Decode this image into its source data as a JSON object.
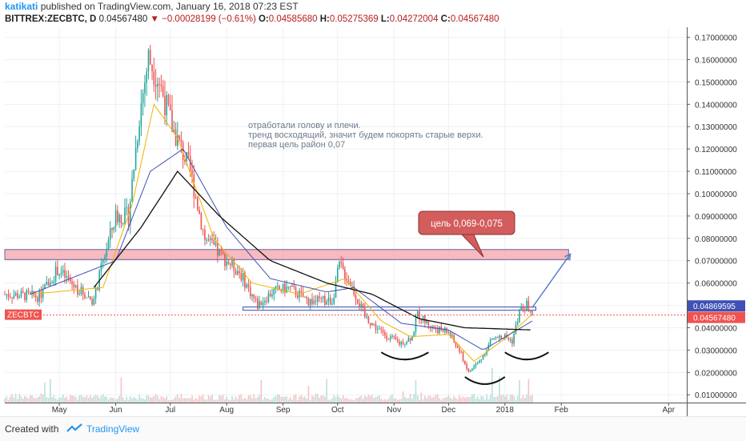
{
  "header": {
    "author": "katikati",
    "published": "published on TradingView.com, January 16, 2018 07:23 EST",
    "symbol": "BITTREX:ZECBTC, D",
    "last": "0.04567480",
    "change": "−0.00028199 (−0.61%)",
    "open_label": "O:",
    "open": "0.04585680",
    "high_label": "H:",
    "high": "0.05275369",
    "low_label": "L:",
    "low": "0.04272004",
    "close_label": "C:",
    "close": "0.04567480"
  },
  "footer": {
    "created_with": "Created with",
    "brand": "TradingView"
  },
  "colors": {
    "up": "#26a69a",
    "down": "#ef5350",
    "accent": "#2196f3",
    "zone": "#f4a3a8",
    "ma_fast": "#f0b400",
    "ma_mid": "#3f51b5",
    "ma_slow": "#111111"
  },
  "chart_data": {
    "type": "candlestick",
    "y_axis": {
      "ticks": [
        "0.17000000",
        "0.16000000",
        "0.15000000",
        "0.14000000",
        "0.13000000",
        "0.12000000",
        "0.11000000",
        "0.10000000",
        "0.09000000",
        "0.08000000",
        "0.07000000",
        "0.06000000",
        "0.05000000",
        "0.04000000",
        "0.03000000",
        "0.02000000",
        "0.01000000"
      ],
      "range": [
        0.0065,
        0.1745
      ]
    },
    "x_axis": {
      "labels": [
        {
          "label": "May",
          "date": "2017-05-01"
        },
        {
          "label": "Jun",
          "date": "2017-06-01"
        },
        {
          "label": "Jul",
          "date": "2017-07-01"
        },
        {
          "label": "Aug",
          "date": "2017-08-01"
        },
        {
          "label": "Sep",
          "date": "2017-09-01"
        },
        {
          "label": "Oct",
          "date": "2017-10-01"
        },
        {
          "label": "Nov",
          "date": "2017-11-01"
        },
        {
          "label": "Dec",
          "date": "2017-12-01"
        },
        {
          "label": "2018",
          "date": "2018-01-01"
        },
        {
          "label": "Feb",
          "date": "2018-02-01"
        },
        {
          "label": "Apr",
          "date": "2018-04-01"
        }
      ],
      "range": [
        "2017-04-01",
        "2018-04-11"
      ]
    },
    "price_anchors": [
      {
        "date": "2017-04-01",
        "value": 0.055
      },
      {
        "date": "2017-04-20",
        "value": 0.054
      },
      {
        "date": "2017-04-30",
        "value": 0.066
      },
      {
        "date": "2017-05-10",
        "value": 0.058
      },
      {
        "date": "2017-05-20",
        "value": 0.052
      },
      {
        "date": "2017-05-25",
        "value": 0.07
      },
      {
        "date": "2017-06-01",
        "value": 0.09
      },
      {
        "date": "2017-06-08",
        "value": 0.09
      },
      {
        "date": "2017-06-14",
        "value": 0.135
      },
      {
        "date": "2017-06-19",
        "value": 0.161
      },
      {
        "date": "2017-06-25",
        "value": 0.15
      },
      {
        "date": "2017-07-02",
        "value": 0.13
      },
      {
        "date": "2017-07-12",
        "value": 0.11
      },
      {
        "date": "2017-07-20",
        "value": 0.08
      },
      {
        "date": "2017-07-28",
        "value": 0.073
      },
      {
        "date": "2017-08-08",
        "value": 0.065
      },
      {
        "date": "2017-08-18",
        "value": 0.05
      },
      {
        "date": "2017-08-26",
        "value": 0.056
      },
      {
        "date": "2017-09-04",
        "value": 0.058
      },
      {
        "date": "2017-09-15",
        "value": 0.052
      },
      {
        "date": "2017-09-28",
        "value": 0.052
      },
      {
        "date": "2017-10-02",
        "value": 0.068
      },
      {
        "date": "2017-10-08",
        "value": 0.06
      },
      {
        "date": "2017-10-16",
        "value": 0.045
      },
      {
        "date": "2017-10-25",
        "value": 0.038
      },
      {
        "date": "2017-11-04",
        "value": 0.033
      },
      {
        "date": "2017-11-11",
        "value": 0.036
      },
      {
        "date": "2017-11-14",
        "value": 0.046
      },
      {
        "date": "2017-11-22",
        "value": 0.04
      },
      {
        "date": "2017-12-01",
        "value": 0.038
      },
      {
        "date": "2017-12-08",
        "value": 0.028
      },
      {
        "date": "2017-12-12",
        "value": 0.02
      },
      {
        "date": "2017-12-18",
        "value": 0.025
      },
      {
        "date": "2017-12-25",
        "value": 0.035
      },
      {
        "date": "2018-01-01",
        "value": 0.036
      },
      {
        "date": "2018-01-05",
        "value": 0.034
      },
      {
        "date": "2018-01-09",
        "value": 0.047
      },
      {
        "date": "2018-01-13",
        "value": 0.05
      },
      {
        "date": "2018-01-16",
        "value": 0.0457
      }
    ],
    "moving_averages": [
      {
        "name": "fast",
        "anchors": [
          {
            "date": "2017-04-15",
            "value": 0.055
          },
          {
            "date": "2017-05-25",
            "value": 0.058
          },
          {
            "date": "2017-06-10",
            "value": 0.095
          },
          {
            "date": "2017-06-22",
            "value": 0.14
          },
          {
            "date": "2017-07-05",
            "value": 0.125
          },
          {
            "date": "2017-07-25",
            "value": 0.08
          },
          {
            "date": "2017-08-15",
            "value": 0.06
          },
          {
            "date": "2017-09-10",
            "value": 0.055
          },
          {
            "date": "2017-10-05",
            "value": 0.062
          },
          {
            "date": "2017-10-25",
            "value": 0.043
          },
          {
            "date": "2017-11-10",
            "value": 0.036
          },
          {
            "date": "2017-12-01",
            "value": 0.037
          },
          {
            "date": "2017-12-15",
            "value": 0.025
          },
          {
            "date": "2018-01-01",
            "value": 0.035
          },
          {
            "date": "2018-01-16",
            "value": 0.046
          }
        ]
      },
      {
        "name": "mid",
        "anchors": [
          {
            "date": "2017-04-15",
            "value": 0.055
          },
          {
            "date": "2017-06-01",
            "value": 0.07
          },
          {
            "date": "2017-06-20",
            "value": 0.11
          },
          {
            "date": "2017-07-08",
            "value": 0.12
          },
          {
            "date": "2017-08-01",
            "value": 0.085
          },
          {
            "date": "2017-08-25",
            "value": 0.062
          },
          {
            "date": "2017-09-25",
            "value": 0.056
          },
          {
            "date": "2017-10-10",
            "value": 0.058
          },
          {
            "date": "2017-11-05",
            "value": 0.042
          },
          {
            "date": "2017-12-01",
            "value": 0.039
          },
          {
            "date": "2017-12-20",
            "value": 0.03
          },
          {
            "date": "2018-01-16",
            "value": 0.043
          }
        ]
      },
      {
        "name": "slow",
        "anchors": [
          {
            "date": "2017-05-20",
            "value": 0.058
          },
          {
            "date": "2017-06-15",
            "value": 0.085
          },
          {
            "date": "2017-07-05",
            "value": 0.11
          },
          {
            "date": "2017-07-28",
            "value": 0.09
          },
          {
            "date": "2017-08-25",
            "value": 0.07
          },
          {
            "date": "2017-09-25",
            "value": 0.06
          },
          {
            "date": "2017-10-20",
            "value": 0.055
          },
          {
            "date": "2017-11-15",
            "value": 0.044
          },
          {
            "date": "2017-12-10",
            "value": 0.04
          },
          {
            "date": "2018-01-16",
            "value": 0.039
          }
        ]
      }
    ],
    "price_tags": [
      {
        "value": 0.04869595,
        "label": "0.04869595",
        "color": "#3f51b5"
      },
      {
        "value": 0.0456748,
        "label": "0.04567480",
        "color": "#ef5350"
      }
    ],
    "symbol_tag": "ZECBTC",
    "zones": [
      {
        "from": "2017-04-01",
        "to": "2018-02-05",
        "low": 0.0705,
        "high": 0.075,
        "color": "#f4a3a8"
      }
    ],
    "support_box": {
      "from": "2017-08-10",
      "to": "2018-01-18",
      "low": 0.0478,
      "high": 0.0493
    },
    "annotations": {
      "comment": [
        "отработали голову и плечи.",
        "тренд восходящий, значит будем покорять старые верхи.",
        "первая цель район 0,07"
      ],
      "target": "цель 0,069-0,075"
    },
    "arrow": {
      "from": {
        "date": "2018-01-16",
        "value": 0.049
      },
      "to": {
        "date": "2018-02-06",
        "value": 0.073
      }
    },
    "grid": true
  }
}
